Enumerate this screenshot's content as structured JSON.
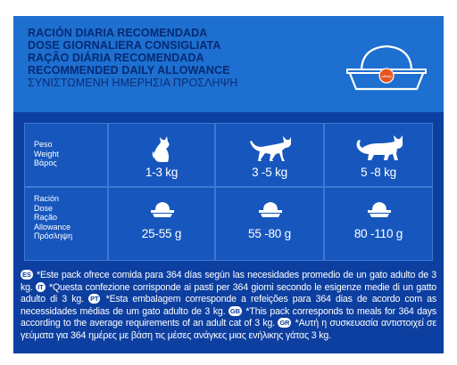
{
  "header": {
    "lines": [
      "RACIÓN DIARIA RECOMENDADA",
      "DOSE GIORNALIERA CONSIGLIATA",
      "RAÇÃO DIÁRIA RECOMENDADA",
      "RECOMMENDED DAILY ALLOWANCE",
      "ΣΥΝΙΣΤΩΜΕΝΗ ΗΜΕΡΗΣΙΑ ΠΡΟΣΛΗΨΗ"
    ],
    "bowl_logo_text": "affinity"
  },
  "table": {
    "weight_label": [
      "Peso",
      "Weight",
      "Βάρος"
    ],
    "dose_label": [
      "Ración",
      "Dose",
      "Ração",
      "Allowance",
      "Πρόσληψη"
    ],
    "weights": [
      "1-3 kg",
      "3 -5 kg",
      "5 -8 kg"
    ],
    "doses": [
      "25-55 g",
      "55 -80 g",
      "80 -110 g"
    ],
    "icons": [
      "small-cat-icon",
      "medium-cat-icon",
      "large-cat-icon",
      "food-bowl-icon"
    ]
  },
  "notes": {
    "es_badge": "ES",
    "es_text": "*Este pack ofrece comida para 364 días según las necesidades promedio de un gato adulto de 3 kg.",
    "it_badge": "IT",
    "it_text": "*Questa confezione corrisponde ai pasti per 364 giorni secondo le esigenze medie di un gatto adulto di 3 kg.",
    "pt_badge": "PT",
    "pt_text": "*Esta embalagem corresponde a refeições para 364 dias de acordo com as necessidades médias de um gato adulto de 3 kg.",
    "gb_badge": "GB",
    "gb_text": "*This pack corresponds to meals for 364 days according to the average requirements of an adult cat of 3 kg.",
    "gr_badge": "GR",
    "gr_text": "*Αυτή η συσκευασία αντιστοιχεί σε γεύματα για 364 ημέρες με βάση τις μέσες ανάγκες μιας ενήλικης γάτας 3 kg."
  },
  "colors": {
    "panel": "#0d3fa0",
    "header": "#1d6fd0",
    "header_text": "#072a73",
    "cell": "#1757bd",
    "logo_orange": "#e8541e"
  }
}
